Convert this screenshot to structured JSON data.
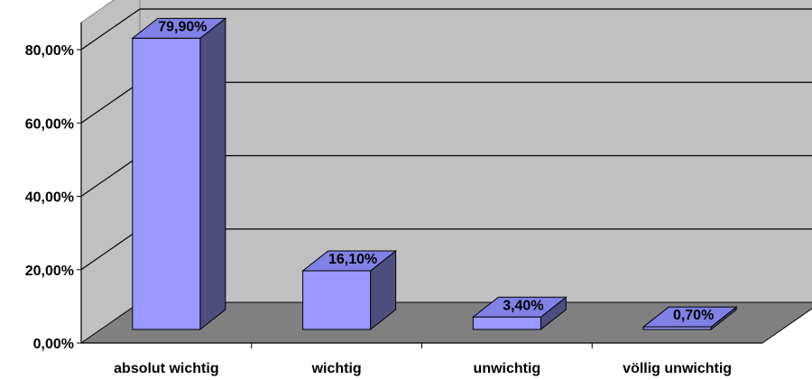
{
  "chart_data": {
    "type": "bar",
    "style": "3d",
    "categories": [
      "absolut wichtig",
      "wichtig",
      "unwichtig",
      "völlig unwichtig"
    ],
    "values": [
      79.9,
      16.1,
      3.4,
      0.7
    ],
    "data_labels": [
      "79,90%",
      "16,10%",
      "3,40%",
      "0,70%"
    ],
    "y_ticks": [
      {
        "value": 0,
        "label": "0,00%"
      },
      {
        "value": 20,
        "label": "20,00%"
      },
      {
        "value": 40,
        "label": "40,00%"
      },
      {
        "value": 60,
        "label": "60,00%"
      },
      {
        "value": 80,
        "label": "80,00%"
      }
    ],
    "ylim": [
      0,
      80
    ],
    "grid": true,
    "legend": "none",
    "colors": {
      "bar_front": "#9999ff",
      "bar_top": "#8080e6",
      "bar_side": "#4d4d80",
      "back_wall": "#c0c0c0",
      "side_wall": "#c0c0c0",
      "floor": "#808080",
      "gridline": "#000000"
    }
  }
}
